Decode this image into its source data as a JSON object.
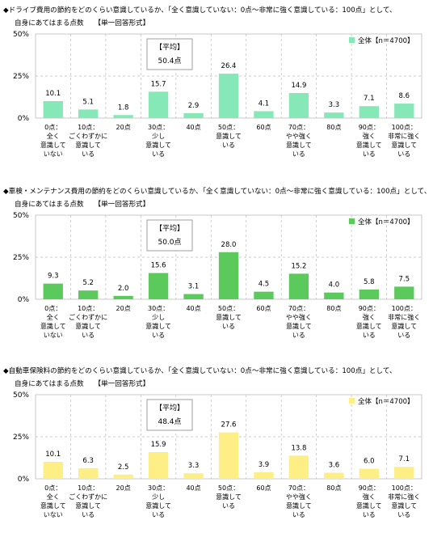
{
  "categories": [
    "0点：全く意識していない",
    "10点：ごくわずかに意識している",
    "20点",
    "30点：少し意識している",
    "40点",
    "50点：意識している",
    "60点",
    "70点：やや強く意識している",
    "80点",
    "90点：強く意識している",
    "100点：非常に強く意識している"
  ],
  "category_lines": [
    [
      "0点：",
      "全く",
      "意識して",
      "いない"
    ],
    [
      "10点：",
      "ごくわずかに",
      "意識して",
      "いる"
    ],
    [
      "20点"
    ],
    [
      "30点：",
      "少し",
      "意識して",
      "いる"
    ],
    [
      "40点"
    ],
    [
      "50点：",
      "意識して",
      "いる"
    ],
    [
      "60点"
    ],
    [
      "70点：",
      "やや強く",
      "意識して",
      "いる"
    ],
    [
      "80点"
    ],
    [
      "90点：",
      "強く",
      "意識して",
      "いる"
    ],
    [
      "100点：",
      "非常に強く",
      "意識して",
      "いる"
    ]
  ],
  "y_ticks": [
    "0%",
    "25%",
    "50%"
  ],
  "avg_label": "【平均】",
  "legend_label": "全体【n＝4700】",
  "chart_data": [
    {
      "type": "bar",
      "title": "◆ドライブ費用の節約をどのくらい意識しているか、「全く意識していない：0点～非常に強く意識している：100点」として、",
      "title2": "自身にあてはまる点数　　【単一回答形式】",
      "average": "50.4点",
      "color": "#86E8B6",
      "ylim": [
        0,
        50
      ],
      "series": [
        {
          "name": "全体【n＝4700】",
          "values": [
            10.1,
            5.1,
            1.8,
            15.7,
            2.9,
            26.4,
            4.1,
            14.9,
            3.3,
            7.1,
            8.6
          ]
        }
      ]
    },
    {
      "type": "bar",
      "title": "◆車検・メンテナンス費用の節約をどのくらい意識しているか、「全く意識していない：0点～非常に強く意識している：100点」として、",
      "title2": "自身にあてはまる点数　　【単一回答形式】",
      "average": "50.0点",
      "color": "#5BC95B",
      "ylim": [
        0,
        50
      ],
      "series": [
        {
          "name": "全体【n＝4700】",
          "values": [
            9.3,
            5.2,
            2.0,
            15.6,
            3.1,
            28.0,
            4.5,
            15.2,
            4.0,
            5.8,
            7.5
          ]
        }
      ]
    },
    {
      "type": "bar",
      "title": "◆自動車保険料の節約をどのくらい意識しているか、「全く意識していない：0点～非常に強く意識している：100点」として、",
      "title2": "自身にあてはまる点数　　【単一回答形式】",
      "average": "48.4点",
      "color": "#FDEE86",
      "ylim": [
        0,
        50
      ],
      "series": [
        {
          "name": "全体【n＝4700】",
          "values": [
            10.1,
            6.3,
            2.5,
            15.9,
            3.3,
            27.6,
            3.9,
            13.8,
            3.6,
            6.0,
            7.1
          ]
        }
      ]
    }
  ]
}
